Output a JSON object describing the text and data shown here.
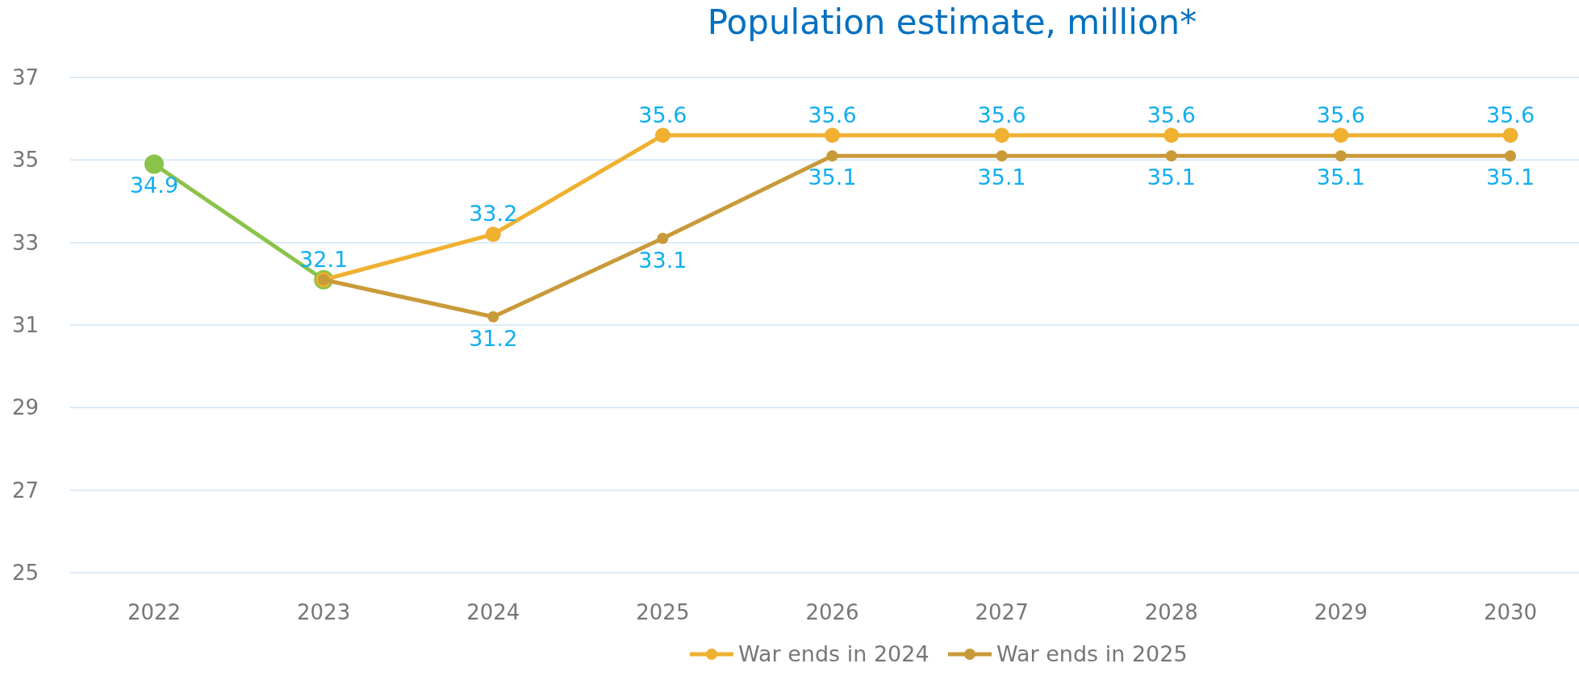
{
  "chart_data": {
    "type": "line",
    "title": "Population estimate, million*",
    "categories": [
      "2022",
      "2023",
      "2024",
      "2025",
      "2026",
      "2027",
      "2028",
      "2029",
      "2030"
    ],
    "series": [
      {
        "color": "#8bc34a",
        "values": [
          34.9,
          32.1,
          null,
          null,
          null,
          null,
          null,
          null,
          null
        ],
        "value_labels": [
          "34.9",
          null,
          null,
          null,
          null,
          null,
          null,
          null,
          null
        ]
      },
      {
        "name": "War ends in 2024",
        "color": "#f0b030",
        "values": [
          null,
          32.1,
          33.2,
          35.6,
          35.6,
          35.6,
          35.6,
          35.6,
          35.6
        ],
        "value_labels": [
          null,
          "32.1",
          "33.2",
          "35.6",
          "35.6",
          "35.6",
          "35.6",
          "35.6",
          "35.6"
        ]
      },
      {
        "name": "War ends in 2025",
        "color": "#c99a3a",
        "values": [
          null,
          32.1,
          31.2,
          33.1,
          35.1,
          35.1,
          35.1,
          35.1,
          35.1
        ],
        "value_labels": [
          null,
          null,
          "31.2",
          "33.1",
          "35.1",
          "35.1",
          "35.1",
          "35.1",
          "35.1"
        ]
      }
    ],
    "ylim": [
      25,
      37
    ],
    "yticks": [
      25,
      27,
      29,
      31,
      33,
      35,
      37
    ],
    "grid": "y",
    "legend": "bottom",
    "marker": "circle",
    "line_style": "solid"
  }
}
